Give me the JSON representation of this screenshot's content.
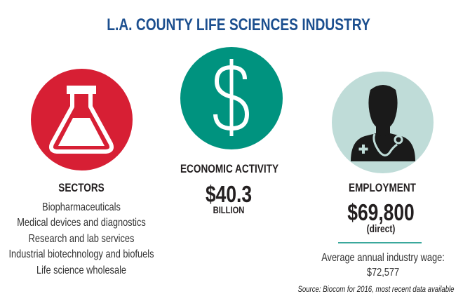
{
  "title": "L.A. COUNTY LIFE SCIENCES INDUSTRY",
  "colors": {
    "title": "#1c4f8f",
    "sectors": "#d71f34",
    "economic": "#00937f",
    "employment": "#bfdcd8",
    "divider": "#3aa89c"
  },
  "sectors": {
    "icon": "flask-icon",
    "heading": "SECTORS",
    "items": [
      "Biopharmaceuticals",
      "Medical devices and diagnostics",
      "Research and lab services",
      "Industrial biotechnology and biofuels",
      "Life science wholesale"
    ]
  },
  "economic": {
    "icon": "dollar-icon",
    "heading": "ECONOMIC ACTIVITY",
    "value": "$40.3",
    "unit": "BILLION"
  },
  "employment": {
    "icon": "doctor-icon",
    "heading": "EMPLOYMENT",
    "value": "$69,800",
    "qualifier": "(direct)",
    "wage_label": "Average annual industry wage:",
    "wage_value": "$72,577"
  },
  "source": "Source: Biocom for 2016, most recent data available"
}
